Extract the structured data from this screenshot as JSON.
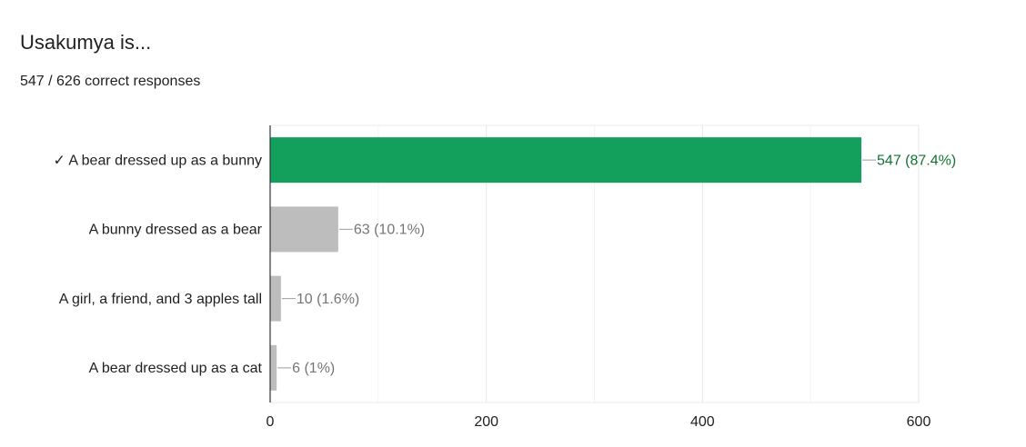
{
  "chart_data": {
    "type": "bar",
    "orientation": "horizontal",
    "title": "Usakumya is...",
    "subtitle": "547 / 626 correct responses",
    "categories": [
      "✓ A bear dressed up as a bunny",
      "A bunny dressed as a bear",
      "A girl, a friend, and 3 apples tall",
      "A bear dressed up as a cat"
    ],
    "values": [
      547,
      63,
      10,
      6
    ],
    "value_labels": [
      "547 (87.4%)",
      "63 (10.1%)",
      "10 (1.6%)",
      "6 (1%)"
    ],
    "colors": [
      "#12a05c",
      "#bdbdbd",
      "#bdbdbd",
      "#bdbdbd"
    ],
    "value_label_colors": [
      "#137333",
      "#757575",
      "#757575",
      "#757575"
    ],
    "xlim": [
      0,
      600
    ],
    "xticks": [
      0,
      200,
      400,
      600
    ],
    "minor_xticks": [
      100,
      300,
      500
    ],
    "grid": true
  }
}
